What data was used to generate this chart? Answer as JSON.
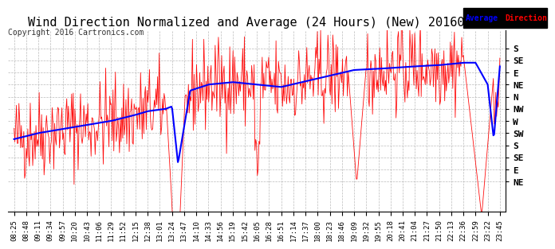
{
  "title": "Wind Direction Normalized and Average (24 Hours) (New) 20160508",
  "copyright": "Copyright 2016 Cartronics.com",
  "background_color": "#ffffff",
  "grid_color": "#aaaaaa",
  "ytick_labels_top_to_bottom": [
    "S",
    "SE",
    "E",
    "NE",
    "N",
    "NW",
    "W",
    "SW",
    "S",
    "SE",
    "E",
    "NE"
  ],
  "legend_labels": [
    "Average",
    "Direction"
  ],
  "legend_colors": [
    "#0000ff",
    "#ff0000"
  ],
  "legend_bg": "#000000",
  "avg_color": "#0000ff",
  "dir_color": "#ff0000",
  "title_fontsize": 11,
  "copyright_fontsize": 7,
  "xtick_fontsize": 6.5,
  "ytick_fontsize": 8,
  "xtick_labels": [
    "08:25",
    "08:48",
    "09:11",
    "09:34",
    "09:57",
    "10:20",
    "10:43",
    "11:06",
    "11:29",
    "11:52",
    "12:15",
    "12:38",
    "13:01",
    "13:24",
    "13:47",
    "14:10",
    "14:33",
    "14:56",
    "15:19",
    "15:42",
    "16:05",
    "16:28",
    "16:51",
    "17:14",
    "17:37",
    "18:00",
    "18:23",
    "18:46",
    "19:09",
    "19:32",
    "19:55",
    "20:18",
    "20:41",
    "21:04",
    "21:27",
    "21:50",
    "22:13",
    "22:36",
    "22:59",
    "23:22",
    "23:45"
  ]
}
